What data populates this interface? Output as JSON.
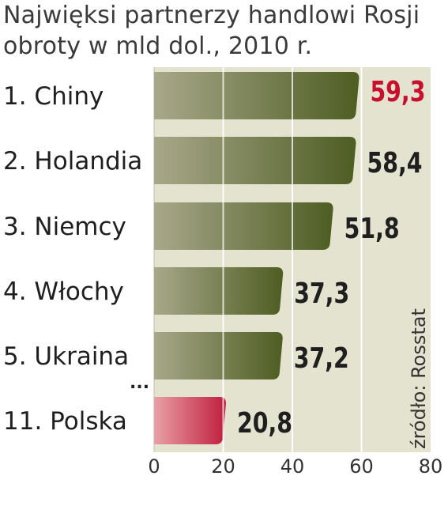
{
  "title_lines": [
    "Najwięksi partnerzy handlowi Rosji",
    "obroty w mld dol., 2010 r."
  ],
  "source": "źródło: Rosstat",
  "ellipsis": "...",
  "colors": {
    "bar_dark": "#4e5d22",
    "bar_light": "#a8a88a",
    "highlight_dark": "#c01e3c",
    "highlight_light": "#e8a0a6",
    "panel": "#e3e3d0",
    "value_text": "#1f1f1f",
    "value_highlight": "#c8102e"
  },
  "chart_data": {
    "type": "bar",
    "orientation": "horizontal",
    "title": "Najwięksi partnerzy handlowi Rosji",
    "subtitle": "obroty w mld dol., 2010 r.",
    "categories": [
      "1. Chiny",
      "2. Holandia",
      "3. Niemcy",
      "4. Włochy",
      "5. Ukraina",
      "11. Polska"
    ],
    "values": [
      59.3,
      58.4,
      51.8,
      37.3,
      37.2,
      20.8
    ],
    "value_labels": [
      "59,3",
      "58,4",
      "51,8",
      "37,3",
      "37,2",
      "20,8"
    ],
    "highlight_value_index": 0,
    "highlight_bar_index": 5,
    "xlim": [
      0,
      80
    ],
    "xticks": [
      "0",
      "20",
      "40",
      "60",
      "80"
    ],
    "grid": true
  }
}
